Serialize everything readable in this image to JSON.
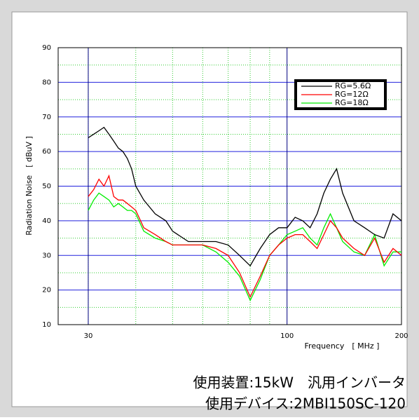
{
  "chart_data": {
    "type": "line",
    "xlabel": "Frequency　[ MHz ]",
    "ylabel": "Radiation Noise　[ dBuV ]",
    "xscale": "log",
    "xlim": [
      25,
      200
    ],
    "ylim": [
      10,
      90
    ],
    "xticks": [
      30,
      100,
      200
    ],
    "yticks": [
      10,
      20,
      30,
      40,
      50,
      60,
      70,
      80,
      90
    ],
    "xgrid_minor": [
      30,
      40,
      50,
      60,
      70,
      80,
      90
    ],
    "ygrid_minor": [
      15,
      25,
      35,
      45,
      55,
      65,
      75,
      85
    ],
    "grid": true,
    "legend": "upper right",
    "x": [
      30,
      31,
      32,
      33,
      34,
      35,
      36,
      37,
      38,
      39,
      40,
      42,
      45,
      48,
      50,
      55,
      60,
      65,
      70,
      75,
      80,
      85,
      90,
      95,
      100,
      105,
      110,
      115,
      120,
      125,
      130,
      135,
      140,
      150,
      160,
      170,
      180,
      190,
      200
    ],
    "series": [
      {
        "name": "RG=5.6Ω",
        "color": "#000000",
        "values": [
          64,
          65,
          66,
          67,
          65,
          63,
          61,
          60,
          58,
          55,
          50,
          46,
          42,
          40,
          37,
          34,
          34,
          34,
          33,
          30,
          27,
          32,
          36,
          38,
          38,
          41,
          40,
          38,
          42,
          48,
          52,
          55,
          48,
          40,
          38,
          36,
          35,
          42,
          40
        ]
      },
      {
        "name": "RG=12Ω",
        "color": "#ff0000",
        "values": [
          47,
          49,
          52,
          50,
          53,
          47,
          46,
          46,
          45,
          44,
          43,
          38,
          36,
          34,
          33,
          33,
          33,
          32,
          30,
          25,
          18,
          24,
          30,
          33,
          35,
          36,
          36,
          34,
          32,
          36,
          40,
          38,
          35,
          32,
          30,
          35,
          28,
          32,
          30
        ]
      },
      {
        "name": "RG=18Ω",
        "color": "#00ee00",
        "values": [
          43,
          46,
          48,
          47,
          46,
          44,
          45,
          44,
          43,
          43,
          42,
          37,
          35,
          34,
          33,
          33,
          33,
          31,
          28,
          24,
          17,
          23,
          30,
          33,
          36,
          37,
          38,
          35,
          33,
          38,
          42,
          38,
          34,
          31,
          30,
          36,
          27,
          31,
          31
        ]
      }
    ],
    "annotations": [
      "使用装置:15kW　汎用インバータ",
      "使用デバイス:2MBI150SC-120"
    ]
  }
}
